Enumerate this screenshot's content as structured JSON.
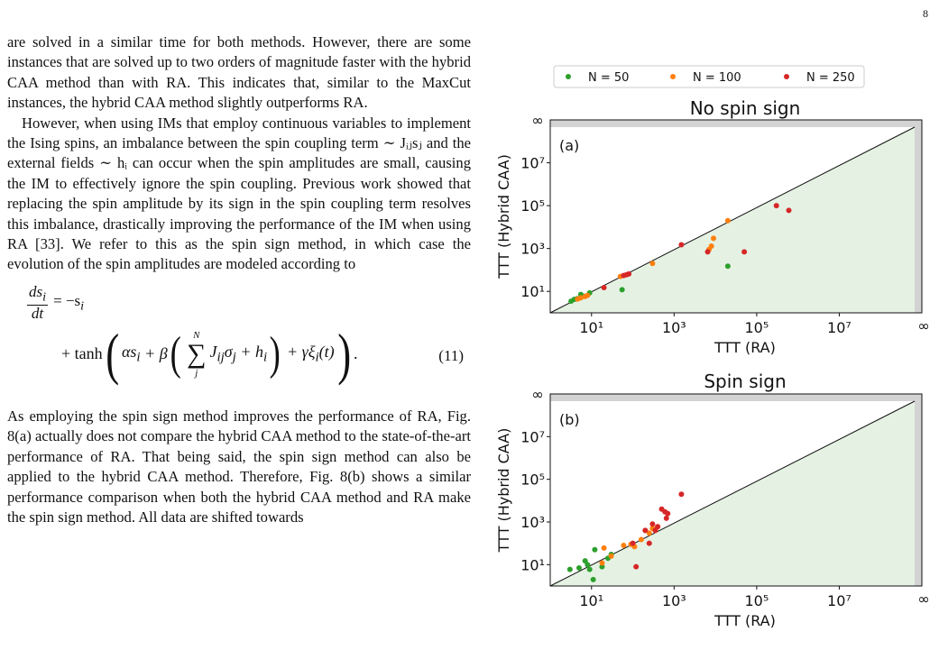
{
  "page_number": "8",
  "paragraphs": [
    "are solved in a similar time for both methods. However, there are some instances that are solved up to two orders of magnitude faster with the hybrid CAA method than with RA. This indicates that, similar to the MaxCut instances, the hybrid CAA method slightly outperforms RA.",
    "However, when using IMs that employ continuous variables to implement the Ising spins, an imbalance between the spin coupling term ∼ Jᵢⱼsⱼ and the external fields ∼ hᵢ can occur when the spin amplitudes are small, causing the IM to effectively ignore the spin coupling. Previous work showed that replacing the spin amplitude by its sign in the spin coupling term resolves this imbalance, drastically improving the performance of the IM when using RA [33]. We refer to this as the spin sign method, in which case the evolution of the spin amplitudes are modeled according to",
    "As employing the spin sign method improves the performance of RA, Fig. 8(a) actually does not compare the hybrid CAA method to the state-of-the-art performance of RA. That being said, the spin sign method can also be applied to the hybrid CAA method. Therefore, Fig. 8(b) shows a similar performance comparison when both the hybrid CAA method and RA make the spin sign method. All data are shifted towards"
  ],
  "equation": {
    "lhs_num": "ds",
    "lhs_num_sub": "i",
    "lhs_den": "dt",
    "rhs1": "= −s",
    "rhs1_sub": "i",
    "tanh": "+ tanh",
    "alpha_term": "αs",
    "beta": "+ β",
    "sum_top": "N",
    "sum_bottom": "j",
    "sum_body": "J",
    "sum_body_sub": "ij",
    "sigma_j": "σ",
    "plus_h": "+ h",
    "gamma_term": "+ γξ",
    "xi_arg": "(t)",
    "number": "(11)"
  },
  "chart_data": [
    {
      "type": "scatter",
      "panel_label": "(a)",
      "title": "No spin sign",
      "xlabel": "TTT (RA)",
      "ylabel": "TTT (Hybrid CAA)",
      "scale": "log10",
      "xlim": [
        1,
        1000000000.0
      ],
      "ylim": [
        1,
        1000000000.0
      ],
      "infinity_label": "∞",
      "x_ticks": [
        "10¹",
        "10³",
        "10⁵",
        "10⁷"
      ],
      "y_ticks": [
        "10¹",
        "10³",
        "10⁵",
        "10⁷"
      ],
      "legend": "top",
      "diagonal": "y = x",
      "series": [
        {
          "name": "N = 50",
          "color": "#2ca02c",
          "points": [
            [
              3.2,
              3.5
            ],
            [
              3.8,
              4.2
            ],
            [
              4.5,
              4.6
            ],
            [
              5.5,
              7.2
            ],
            [
              6.5,
              6.0
            ],
            [
              9.0,
              8.5
            ],
            [
              55,
              12
            ],
            [
              20000,
              150
            ]
          ]
        },
        {
          "name": "N = 100",
          "color": "#ff7f0e",
          "points": [
            [
              4.6,
              4.4
            ],
            [
              5.5,
              5.0
            ],
            [
              7.0,
              5.8
            ],
            [
              8.0,
              6.5
            ],
            [
              50,
              50
            ],
            [
              300,
              200
            ],
            [
              7000,
              900
            ],
            [
              8000,
              1300
            ],
            [
              9000,
              3000
            ],
            [
              20000,
              20000
            ]
          ]
        },
        {
          "name": "N = 250",
          "color": "#d62728",
          "points": [
            [
              20,
              15
            ],
            [
              60,
              55
            ],
            [
              70,
              60
            ],
            [
              80,
              65
            ],
            [
              1500,
              1500
            ],
            [
              6500,
              700
            ],
            [
              50000,
              700
            ],
            [
              300000,
              100000
            ],
            [
              600000,
              60000
            ]
          ]
        }
      ]
    },
    {
      "type": "scatter",
      "panel_label": "(b)",
      "title": "Spin sign",
      "xlabel": "TTT (RA)",
      "ylabel": "TTT (Hybrid CAA)",
      "scale": "log10",
      "xlim": [
        1,
        1000000000.0
      ],
      "ylim": [
        1,
        1000000000.0
      ],
      "infinity_label": "∞",
      "x_ticks": [
        "10¹",
        "10³",
        "10⁵",
        "10⁷"
      ],
      "y_ticks": [
        "10¹",
        "10³",
        "10⁵",
        "10⁷"
      ],
      "diagonal": "y = x",
      "series": [
        {
          "name": "N = 50",
          "color": "#2ca02c",
          "points": [
            [
              3.0,
              6.0
            ],
            [
              5.0,
              7.0
            ],
            [
              7.0,
              15
            ],
            [
              8.0,
              10
            ],
            [
              9.0,
              6
            ],
            [
              11,
              2
            ],
            [
              12,
              50
            ],
            [
              18,
              8
            ],
            [
              25,
              20
            ],
            [
              30,
              30
            ]
          ]
        },
        {
          "name": "N = 100",
          "color": "#ff7f0e",
          "points": [
            [
              18,
              12
            ],
            [
              20,
              60
            ],
            [
              30,
              25
            ],
            [
              60,
              80
            ],
            [
              90,
              90
            ],
            [
              110,
              70
            ],
            [
              160,
              150
            ],
            [
              200,
              400
            ],
            [
              250,
              300
            ],
            [
              300,
              500
            ],
            [
              350,
              400
            ],
            [
              400,
              600
            ]
          ]
        },
        {
          "name": "N = 250",
          "color": "#d62728",
          "points": [
            [
              100,
              100
            ],
            [
              120,
              8
            ],
            [
              200,
              400
            ],
            [
              250,
              100
            ],
            [
              300,
              800
            ],
            [
              350,
              400
            ],
            [
              400,
              600
            ],
            [
              500,
              4000
            ],
            [
              600,
              3000
            ],
            [
              650,
              1500
            ],
            [
              700,
              2500
            ],
            [
              1500,
              20000
            ]
          ]
        }
      ]
    }
  ]
}
